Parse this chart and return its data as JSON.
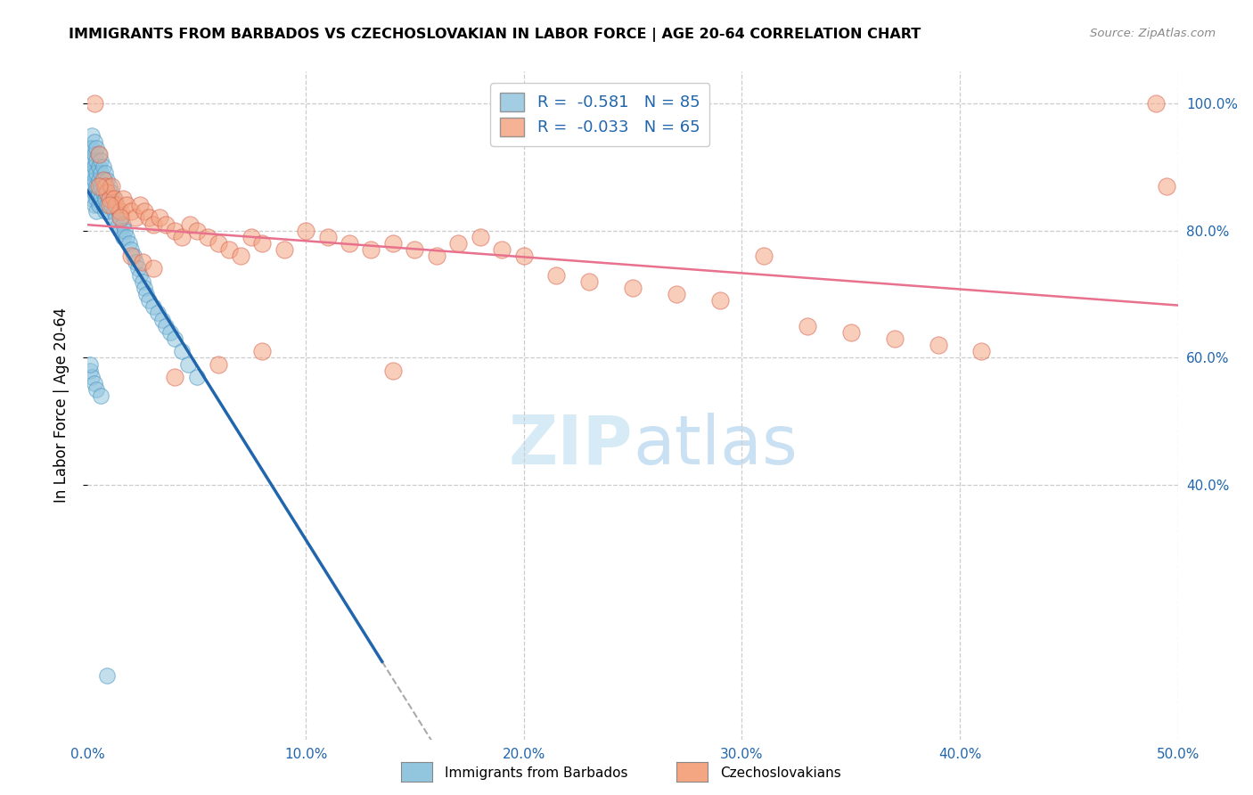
{
  "title": "IMMIGRANTS FROM BARBADOS VS CZECHOSLOVAKIAN IN LABOR FORCE | AGE 20-64 CORRELATION CHART",
  "source": "Source: ZipAtlas.com",
  "ylabel": "In Labor Force | Age 20-64",
  "xlim": [
    0.0,
    0.5
  ],
  "ylim": [
    0.0,
    1.05
  ],
  "barbados_R": -0.581,
  "barbados_N": 85,
  "czech_R": -0.033,
  "czech_N": 65,
  "barbados_color": "#92c5de",
  "barbados_edge": "#4393c3",
  "czech_color": "#f4a582",
  "czech_edge": "#d6604d",
  "trend_barbados_color": "#2166ac",
  "trend_czech_color": "#e8718d",
  "watermark_color": "#d0e8f5",
  "barbados_points_x": [
    0.001,
    0.001,
    0.001,
    0.001,
    0.002,
    0.002,
    0.002,
    0.002,
    0.002,
    0.002,
    0.003,
    0.003,
    0.003,
    0.003,
    0.003,
    0.003,
    0.004,
    0.004,
    0.004,
    0.004,
    0.004,
    0.004,
    0.005,
    0.005,
    0.005,
    0.005,
    0.005,
    0.006,
    0.006,
    0.006,
    0.006,
    0.007,
    0.007,
    0.007,
    0.007,
    0.008,
    0.008,
    0.008,
    0.008,
    0.009,
    0.009,
    0.009,
    0.01,
    0.01,
    0.01,
    0.011,
    0.011,
    0.012,
    0.012,
    0.013,
    0.013,
    0.014,
    0.014,
    0.015,
    0.015,
    0.016,
    0.016,
    0.017,
    0.018,
    0.019,
    0.02,
    0.021,
    0.022,
    0.023,
    0.024,
    0.025,
    0.026,
    0.027,
    0.028,
    0.03,
    0.032,
    0.034,
    0.036,
    0.038,
    0.04,
    0.043,
    0.046,
    0.05,
    0.001,
    0.002,
    0.003,
    0.004,
    0.006,
    0.009,
    0.001
  ],
  "barbados_points_y": [
    0.93,
    0.91,
    0.89,
    0.87,
    0.95,
    0.93,
    0.91,
    0.89,
    0.87,
    0.85,
    0.94,
    0.92,
    0.9,
    0.88,
    0.86,
    0.84,
    0.93,
    0.91,
    0.89,
    0.87,
    0.85,
    0.83,
    0.92,
    0.9,
    0.88,
    0.86,
    0.84,
    0.91,
    0.89,
    0.87,
    0.85,
    0.9,
    0.88,
    0.86,
    0.84,
    0.89,
    0.87,
    0.85,
    0.83,
    0.88,
    0.86,
    0.84,
    0.87,
    0.85,
    0.83,
    0.86,
    0.84,
    0.85,
    0.83,
    0.84,
    0.82,
    0.83,
    0.81,
    0.82,
    0.8,
    0.81,
    0.79,
    0.8,
    0.79,
    0.78,
    0.77,
    0.76,
    0.75,
    0.74,
    0.73,
    0.72,
    0.71,
    0.7,
    0.69,
    0.68,
    0.67,
    0.66,
    0.65,
    0.64,
    0.63,
    0.61,
    0.59,
    0.57,
    0.58,
    0.57,
    0.56,
    0.55,
    0.54,
    0.1,
    0.59
  ],
  "czech_points_x": [
    0.003,
    0.005,
    0.007,
    0.008,
    0.009,
    0.01,
    0.011,
    0.012,
    0.013,
    0.015,
    0.016,
    0.018,
    0.02,
    0.022,
    0.024,
    0.026,
    0.028,
    0.03,
    0.033,
    0.036,
    0.04,
    0.043,
    0.047,
    0.05,
    0.055,
    0.06,
    0.065,
    0.07,
    0.075,
    0.08,
    0.09,
    0.1,
    0.11,
    0.12,
    0.13,
    0.14,
    0.15,
    0.16,
    0.17,
    0.18,
    0.19,
    0.2,
    0.215,
    0.23,
    0.25,
    0.27,
    0.29,
    0.31,
    0.33,
    0.35,
    0.37,
    0.39,
    0.41,
    0.005,
    0.01,
    0.015,
    0.02,
    0.025,
    0.03,
    0.04,
    0.06,
    0.08,
    0.14,
    0.49,
    0.495
  ],
  "czech_points_y": [
    1.0,
    0.92,
    0.88,
    0.87,
    0.86,
    0.85,
    0.87,
    0.85,
    0.84,
    0.83,
    0.85,
    0.84,
    0.83,
    0.82,
    0.84,
    0.83,
    0.82,
    0.81,
    0.82,
    0.81,
    0.8,
    0.79,
    0.81,
    0.8,
    0.79,
    0.78,
    0.77,
    0.76,
    0.79,
    0.78,
    0.77,
    0.8,
    0.79,
    0.78,
    0.77,
    0.78,
    0.77,
    0.76,
    0.78,
    0.79,
    0.77,
    0.76,
    0.73,
    0.72,
    0.71,
    0.7,
    0.69,
    0.76,
    0.65,
    0.64,
    0.63,
    0.62,
    0.61,
    0.87,
    0.84,
    0.82,
    0.76,
    0.75,
    0.74,
    0.57,
    0.59,
    0.61,
    0.58,
    1.0,
    0.87
  ]
}
